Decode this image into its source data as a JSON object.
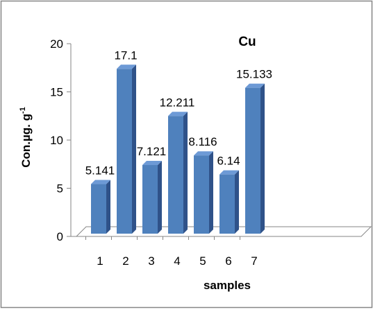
{
  "chart_data": {
    "type": "bar",
    "title": "Cu",
    "xlabel": "samples",
    "ylabel": "Con.µg. g",
    "ylabel_superscript": "-1",
    "categories": [
      "1",
      "2",
      "3",
      "4",
      "5",
      "6",
      "7"
    ],
    "values": [
      5.141,
      17.1,
      7.121,
      12.211,
      8.116,
      6.14,
      15.133
    ],
    "data_labels": [
      "5.141",
      "17.1",
      "7.121",
      "12.211",
      "8.116",
      "6.14",
      "15.133"
    ],
    "ylim": [
      0,
      20
    ],
    "yticks": [
      "0",
      "5",
      "10",
      "15",
      "20"
    ],
    "grid": false,
    "legend": "none",
    "style": "3d-column",
    "colors": {
      "bar_front": "#4F81BD",
      "bar_side": "#2F5289",
      "bar_top": "#6D9AD6",
      "border": "#868686"
    }
  }
}
